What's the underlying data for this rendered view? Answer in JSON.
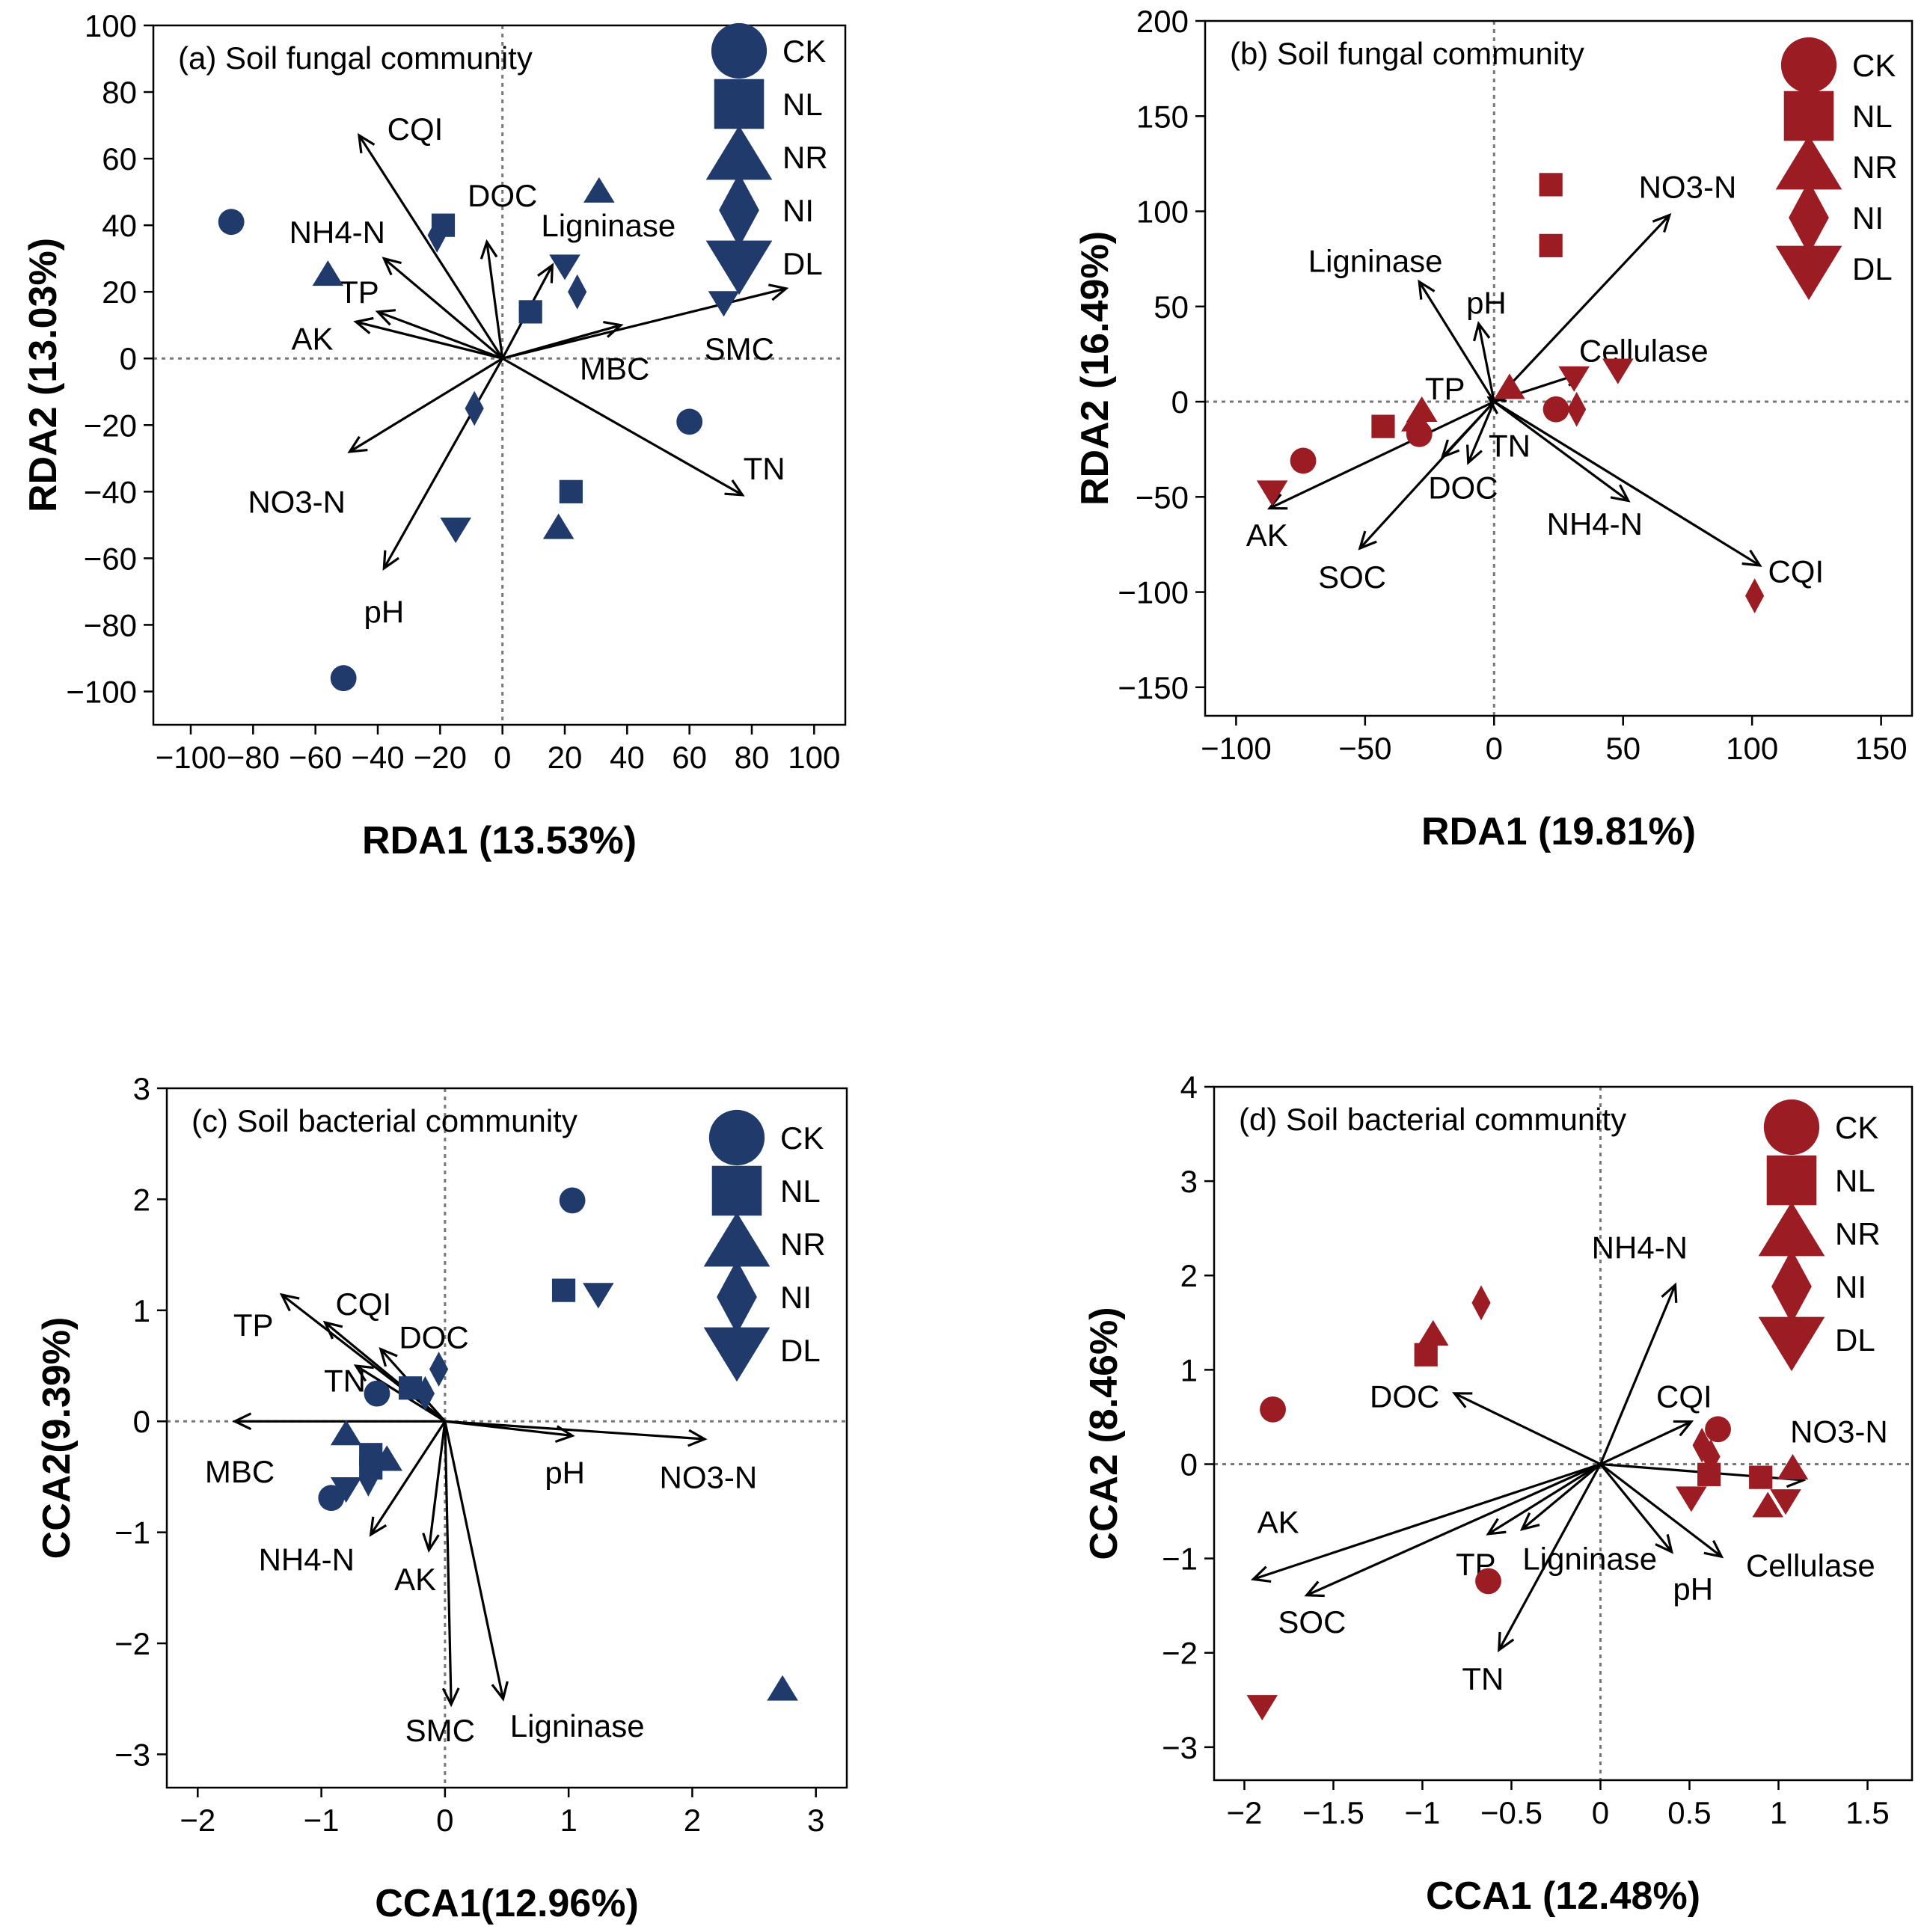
{
  "chart_data": [
    {
      "id": "a",
      "type": "scatter",
      "title": "(a) Soil fungal community",
      "xlabel": "RDA1 (13.53%)",
      "ylabel": "RDA2 (13.03%)",
      "xlim": [
        -112,
        110
      ],
      "ylim": [
        -110,
        100
      ],
      "xticks": [
        -100,
        -80,
        -60,
        -40,
        -20,
        0,
        20,
        40,
        60,
        80,
        100
      ],
      "yticks": [
        -100,
        -80,
        -60,
        -40,
        -20,
        0,
        20,
        40,
        60,
        80,
        100
      ],
      "xtick_labels": [
        "−100",
        "−80",
        "−60",
        "−40",
        "−20",
        "0",
        "20",
        "40",
        "60",
        "80",
        "100"
      ],
      "ytick_labels": [
        "−100",
        "−80",
        "−60",
        "−40",
        "−20",
        "0",
        "20",
        "40",
        "60",
        "80",
        "100"
      ],
      "color": "#1f3a6b",
      "legend": [
        "CK",
        "NL",
        "NR",
        "NI",
        "DL"
      ],
      "legend_position": "top-right",
      "points": [
        {
          "group": "CK",
          "x": -87,
          "y": 41
        },
        {
          "group": "CK",
          "x": 60,
          "y": -19
        },
        {
          "group": "CK",
          "x": -51,
          "y": -96
        },
        {
          "group": "NL",
          "x": -19,
          "y": 40
        },
        {
          "group": "NL",
          "x": 9,
          "y": 14
        },
        {
          "group": "NL",
          "x": 22,
          "y": -40
        },
        {
          "group": "NR",
          "x": 31,
          "y": 50
        },
        {
          "group": "NR",
          "x": -56,
          "y": 25
        },
        {
          "group": "NR",
          "x": 18,
          "y": -51
        },
        {
          "group": "NI",
          "x": -21,
          "y": 37
        },
        {
          "group": "NI",
          "x": 24,
          "y": 20
        },
        {
          "group": "NI",
          "x": -9,
          "y": -15
        },
        {
          "group": "DL",
          "x": 20,
          "y": 28
        },
        {
          "group": "DL",
          "x": 71,
          "y": 17
        },
        {
          "group": "DL",
          "x": -15,
          "y": -51
        }
      ],
      "arrows": [
        {
          "label": "CQI",
          "x": -46,
          "y": 67,
          "lx": -28,
          "ly": 69
        },
        {
          "label": "DOC",
          "x": -5,
          "y": 35,
          "lx": 0,
          "ly": 49
        },
        {
          "label": "NH4-N",
          "x": -38,
          "y": 30,
          "lx": -53,
          "ly": 38
        },
        {
          "label": "Ligninase",
          "x": 16,
          "y": 28,
          "lx": 34,
          "ly": 40
        },
        {
          "label": "TP",
          "x": -40,
          "y": 14,
          "lx": -46,
          "ly": 20
        },
        {
          "label": "AK",
          "x": -47,
          "y": 11,
          "lx": -61,
          "ly": 6
        },
        {
          "label": "MBC",
          "x": 38,
          "y": 10,
          "lx": 36,
          "ly": -3
        },
        {
          "label": "SMC",
          "x": 91,
          "y": 21,
          "lx": 76,
          "ly": 3
        },
        {
          "label": "TN",
          "x": 77,
          "y": -41,
          "lx": 84,
          "ly": -33
        },
        {
          "label": "NO3-N",
          "x": -49,
          "y": -28,
          "lx": -66,
          "ly": -43
        },
        {
          "label": "pH",
          "x": -38,
          "y": -63,
          "lx": -38,
          "ly": -76
        }
      ]
    },
    {
      "id": "b",
      "type": "scatter",
      "title": "(b) Soil fungal community",
      "xlabel": "RDA1 (19.81%)",
      "ylabel": "RDA2 (16.49%)",
      "xlim": [
        -112,
        162
      ],
      "ylim": [
        -165,
        200
      ],
      "xticks": [
        -100,
        -50,
        0,
        50,
        100,
        150
      ],
      "yticks": [
        -150,
        -100,
        -50,
        0,
        50,
        100,
        150,
        200
      ],
      "xtick_labels": [
        "−100",
        "−50",
        "0",
        "50",
        "100",
        "150"
      ],
      "ytick_labels": [
        "−150",
        "−100",
        "−50",
        "0",
        "50",
        "100",
        "150",
        "200"
      ],
      "color": "#9b1c22",
      "legend": [
        "CK",
        "NL",
        "NR",
        "NI",
        "DL"
      ],
      "legend_position": "top-right",
      "points": [
        {
          "group": "CK",
          "x": -74,
          "y": -31
        },
        {
          "group": "CK",
          "x": -29,
          "y": -17
        },
        {
          "group": "CK",
          "x": 24,
          "y": -4
        },
        {
          "group": "NL",
          "x": 22,
          "y": 114
        },
        {
          "group": "NL",
          "x": 22,
          "y": 82
        },
        {
          "group": "NL",
          "x": -43,
          "y": -13
        },
        {
          "group": "NR",
          "x": -30,
          "y": -10
        },
        {
          "group": "NR",
          "x": -28,
          "y": -5
        },
        {
          "group": "NR",
          "x": 6,
          "y": 7
        },
        {
          "group": "NI",
          "x": 32,
          "y": -4
        },
        {
          "group": "NI",
          "x": 101,
          "y": -102
        },
        {
          "group": "DL",
          "x": -86,
          "y": -47
        },
        {
          "group": "DL",
          "x": 48,
          "y": 17
        },
        {
          "group": "DL",
          "x": 31,
          "y": 13
        }
      ],
      "arrows": [
        {
          "label": "NO3-N",
          "x": 68,
          "y": 98,
          "lx": 75,
          "ly": 113
        },
        {
          "label": "Ligninase",
          "x": -29,
          "y": 63,
          "lx": -46,
          "ly": 74
        },
        {
          "label": "pH",
          "x": -6,
          "y": 41,
          "lx": -3,
          "ly": 52
        },
        {
          "label": "Cellulase",
          "x": 34,
          "y": 15,
          "lx": 58,
          "ly": 27
        },
        {
          "label": "TP",
          "x": -2,
          "y": 2,
          "lx": -19,
          "ly": 7
        },
        {
          "label": "TN",
          "x": -10,
          "y": -32,
          "lx": 6,
          "ly": -23
        },
        {
          "label": "DOC",
          "x": -20,
          "y": -29,
          "lx": -12,
          "ly": -45
        },
        {
          "label": "AK",
          "x": -87,
          "y": -56,
          "lx": -88,
          "ly": -70
        },
        {
          "label": "SOC",
          "x": -52,
          "y": -77,
          "lx": -55,
          "ly": -92
        },
        {
          "label": "NH4-N",
          "x": 52,
          "y": -52,
          "lx": 39,
          "ly": -64
        },
        {
          "label": "CQI",
          "x": 103,
          "y": -86,
          "lx": 117,
          "ly": -89
        }
      ]
    },
    {
      "id": "c",
      "type": "scatter",
      "title": "(c) Soil bacterial community",
      "xlabel": "CCA1(12.96%)",
      "ylabel": "CCA2(9.39%)",
      "xlim": [
        -2.25,
        3.25
      ],
      "ylim": [
        -3.3,
        3.0
      ],
      "xticks": [
        -2,
        -1,
        0,
        1,
        2,
        3
      ],
      "yticks": [
        -3,
        -2,
        -1,
        0,
        1,
        2,
        3
      ],
      "xtick_labels": [
        "−2",
        "−1",
        "0",
        "1",
        "2",
        "3"
      ],
      "ytick_labels": [
        "−3",
        "−2",
        "−1",
        "0",
        "1",
        "2",
        "3"
      ],
      "color": "#1f3a6b",
      "legend": [
        "CK",
        "NL",
        "NR",
        "NI",
        "DL"
      ],
      "legend_position": "top-right",
      "points": [
        {
          "group": "CK",
          "x": 1.03,
          "y": 1.99
        },
        {
          "group": "CK",
          "x": -0.55,
          "y": 0.25
        },
        {
          "group": "CK",
          "x": -0.92,
          "y": -0.69
        },
        {
          "group": "NL",
          "x": 0.96,
          "y": 1.18
        },
        {
          "group": "NL",
          "x": -0.28,
          "y": 0.3
        },
        {
          "group": "NL",
          "x": -0.6,
          "y": -0.3
        },
        {
          "group": "NL",
          "x": -0.6,
          "y": -0.42
        },
        {
          "group": "NR",
          "x": 2.73,
          "y": -2.42
        },
        {
          "group": "NR",
          "x": -0.8,
          "y": -0.12
        },
        {
          "group": "NR",
          "x": -0.47,
          "y": -0.35
        },
        {
          "group": "NI",
          "x": -0.05,
          "y": 0.47
        },
        {
          "group": "NI",
          "x": -0.16,
          "y": 0.25
        },
        {
          "group": "NI",
          "x": -0.62,
          "y": -0.52
        },
        {
          "group": "DL",
          "x": 1.24,
          "y": 1.15
        },
        {
          "group": "DL",
          "x": -0.8,
          "y": -0.6
        }
      ],
      "arrows": [
        {
          "label": "TP",
          "x": -1.32,
          "y": 1.14,
          "lx": -1.55,
          "ly": 0.87
        },
        {
          "label": "CQI",
          "x": -0.97,
          "y": 0.89,
          "lx": -0.66,
          "ly": 1.06
        },
        {
          "label": "DOC",
          "x": -0.52,
          "y": 0.65,
          "lx": -0.09,
          "ly": 0.76
        },
        {
          "label": "TN",
          "x": -0.72,
          "y": 0.5,
          "lx": -0.81,
          "ly": 0.37
        },
        {
          "label": "MBC",
          "x": -1.7,
          "y": 0.0,
          "lx": -1.66,
          "ly": -0.45
        },
        {
          "label": "pH",
          "x": 1.03,
          "y": -0.13,
          "lx": 0.97,
          "ly": -0.46
        },
        {
          "label": "NO3-N",
          "x": 2.1,
          "y": -0.16,
          "lx": 2.13,
          "ly": -0.5
        },
        {
          "label": "NH4-N",
          "x": -0.6,
          "y": -1.02,
          "lx": -1.12,
          "ly": -1.24
        },
        {
          "label": "AK",
          "x": -0.13,
          "y": -1.16,
          "lx": -0.24,
          "ly": -1.42
        },
        {
          "label": "SMC",
          "x": 0.05,
          "y": -2.55,
          "lx": -0.04,
          "ly": -2.78
        },
        {
          "label": "Ligninase",
          "x": 0.47,
          "y": -2.5,
          "lx": 1.07,
          "ly": -2.74
        }
      ]
    },
    {
      "id": "d",
      "type": "scatter",
      "title": "(d) Soil bacterial community",
      "xlabel": "CCA1 (12.48%)",
      "ylabel": "CCA2 (8.46%)",
      "xlim": [
        -2.17,
        1.75
      ],
      "ylim": [
        -3.35,
        4.0
      ],
      "xticks": [
        -2,
        -1.5,
        -1,
        -0.5,
        0,
        0.5,
        1,
        1.5
      ],
      "yticks": [
        -3,
        -2,
        -1,
        0,
        1,
        2,
        3,
        4
      ],
      "xtick_labels": [
        "−2",
        "−1.5",
        "−1",
        "−0.5",
        "0",
        "0.5",
        "1",
        "1.5"
      ],
      "ytick_labels": [
        "−3",
        "−2",
        "−1",
        "0",
        "1",
        "2",
        "3",
        "4"
      ],
      "color": "#9b1c22",
      "legend": [
        "CK",
        "NL",
        "NR",
        "NI",
        "DL"
      ],
      "legend_position": "top-right",
      "points": [
        {
          "group": "CK",
          "x": -1.84,
          "y": 0.58
        },
        {
          "group": "CK",
          "x": 0.66,
          "y": 0.37
        },
        {
          "group": "CK",
          "x": -0.63,
          "y": -1.24
        },
        {
          "group": "NL",
          "x": -0.98,
          "y": 1.16
        },
        {
          "group": "NL",
          "x": 0.61,
          "y": -0.11
        },
        {
          "group": "NL",
          "x": 0.9,
          "y": -0.14
        },
        {
          "group": "NR",
          "x": -0.94,
          "y": 1.37
        },
        {
          "group": "NR",
          "x": 1.08,
          "y": -0.05
        },
        {
          "group": "NR",
          "x": 0.94,
          "y": -0.45
        },
        {
          "group": "NI",
          "x": -0.67,
          "y": 1.71
        },
        {
          "group": "NI",
          "x": 0.57,
          "y": 0.2
        },
        {
          "group": "NI",
          "x": 0.62,
          "y": 0.08
        },
        {
          "group": "DL",
          "x": -1.9,
          "y": -2.56
        },
        {
          "group": "DL",
          "x": 0.51,
          "y": -0.35
        },
        {
          "group": "DL",
          "x": 1.04,
          "y": -0.38
        }
      ],
      "arrows": [
        {
          "label": "NH4-N",
          "x": 0.42,
          "y": 1.9,
          "lx": 0.22,
          "ly": 2.3
        },
        {
          "label": "DOC",
          "x": -0.82,
          "y": 0.75,
          "lx": -1.1,
          "ly": 0.72
        },
        {
          "label": "CQI",
          "x": 0.51,
          "y": 0.45,
          "lx": 0.47,
          "ly": 0.72
        },
        {
          "label": "NO3-N",
          "x": 1.14,
          "y": -0.17,
          "lx": 1.34,
          "ly": 0.35
        },
        {
          "label": "AK",
          "x": -1.95,
          "y": -1.22,
          "lx": -1.81,
          "ly": -0.61
        },
        {
          "label": "SOC",
          "x": -1.65,
          "y": -1.39,
          "lx": -1.62,
          "ly": -1.67
        },
        {
          "label": "TP",
          "x": -0.63,
          "y": -0.74,
          "lx": -0.7,
          "ly": -1.06
        },
        {
          "label": "Ligninase",
          "x": -0.44,
          "y": -0.69,
          "lx": -0.06,
          "ly": -1.0
        },
        {
          "label": "pH",
          "x": 0.4,
          "y": -0.93,
          "lx": 0.52,
          "ly": -1.32
        },
        {
          "label": "Cellulase",
          "x": 0.68,
          "y": -0.98,
          "lx": 1.18,
          "ly": -1.07
        },
        {
          "label": "TN",
          "x": -0.57,
          "y": -1.97,
          "lx": -0.66,
          "ly": -2.27
        }
      ]
    }
  ]
}
